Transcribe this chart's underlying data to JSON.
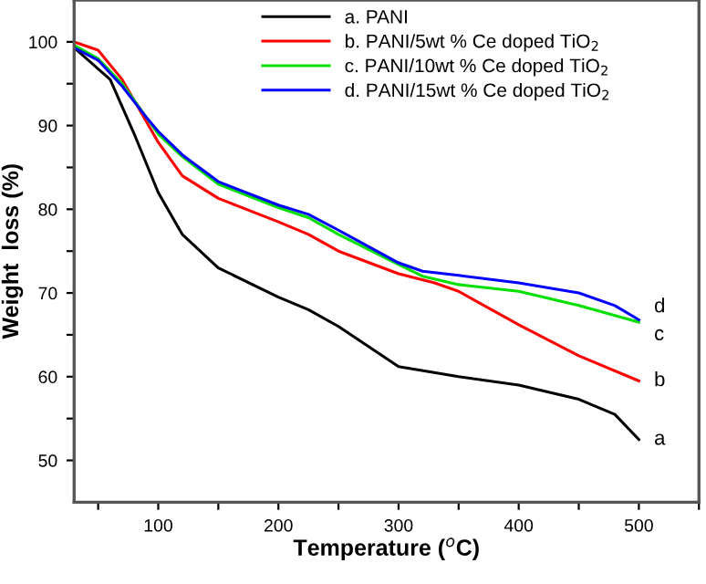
{
  "chart_data": {
    "type": "line",
    "xlabel": "Temperature ($^{o}$C)",
    "ylabel": "Weight  loss (%)",
    "xlim": [
      30,
      550
    ],
    "ylim": [
      45,
      105
    ],
    "xticks": [
      {
        "value": 50,
        "label": null
      },
      100,
      {
        "value": 150,
        "label": null
      },
      200,
      {
        "value": 250,
        "label": null
      },
      300,
      {
        "value": 350,
        "label": null
      },
      400,
      {
        "value": 450,
        "label": null
      },
      500,
      {
        "value": 550,
        "label": null
      }
    ],
    "yticks": [
      50,
      {
        "value": 55,
        "label": null
      },
      60,
      {
        "value": 65,
        "label": null
      },
      70,
      {
        "value": 75,
        "label": null
      },
      80,
      {
        "value": 85,
        "label": null
      },
      90,
      {
        "value": 95,
        "label": null
      },
      100
    ],
    "grid": false,
    "legend": "top",
    "marker": "none",
    "line_style": "solid",
    "series": [
      {
        "name": "a. PANI",
        "color": "#000000",
        "x": [
          30,
          60,
          80,
          100,
          120,
          150,
          200,
          225,
          250,
          300,
          350,
          400,
          450,
          480,
          500
        ],
        "values": [
          99.3,
          95.5,
          89,
          82,
          77,
          73,
          69.5,
          68,
          66,
          61.2,
          60,
          59,
          57.3,
          55.5,
          52.5
        ]
      },
      {
        "name": "b. PANI/5wt % Ce doped TiO$_{2}$",
        "color": "#ff0000",
        "x": [
          30,
          50,
          70,
          90,
          100,
          120,
          150,
          200,
          225,
          250,
          300,
          330,
          350,
          400,
          450,
          500
        ],
        "values": [
          100,
          99,
          95.5,
          90.5,
          88,
          84,
          81.3,
          78.5,
          77,
          75,
          72.3,
          71.2,
          70.2,
          66.2,
          62.5,
          59.5
        ]
      },
      {
        "name": "c. PANI/10wt % Ce doped TiO$_{2}$",
        "color": "#00e000",
        "x": [
          30,
          50,
          70,
          90,
          100,
          120,
          150,
          200,
          225,
          250,
          300,
          320,
          350,
          400,
          450,
          500
        ],
        "values": [
          99.6,
          98,
          95,
          91,
          89,
          86.3,
          83,
          80.2,
          79,
          77,
          73.4,
          72,
          71,
          70.2,
          68.5,
          66.5
        ]
      },
      {
        "name": "d. PANI/15wt % Ce doped TiO$_{2}$",
        "color": "#0000ff",
        "x": [
          30,
          50,
          70,
          90,
          100,
          120,
          150,
          200,
          225,
          250,
          300,
          320,
          350,
          400,
          450,
          480,
          500
        ],
        "values": [
          99.3,
          97.8,
          94.7,
          91,
          89.3,
          86.5,
          83.3,
          80.5,
          79.4,
          77.5,
          73.6,
          72.6,
          72.1,
          71.2,
          70,
          68.5,
          66.8
        ]
      }
    ],
    "annotations": [
      "a",
      "b",
      "c",
      "d"
    ]
  }
}
